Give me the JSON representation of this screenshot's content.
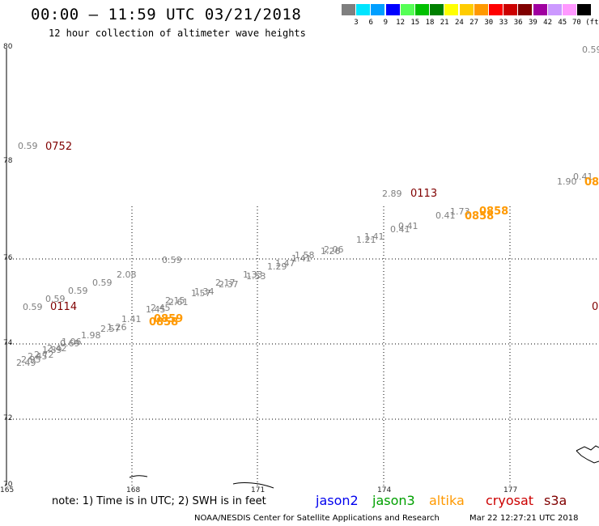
{
  "header": {
    "title": "00:00 – 11:59 UTC 03/21/2018",
    "subtitle": "12 hour collection of altimeter wave heights"
  },
  "color_scale": {
    "labels": [
      "3",
      "6",
      "9",
      "12",
      "15",
      "18",
      "21",
      "24",
      "27",
      "30",
      "33",
      "36",
      "39",
      "42",
      "45",
      "70 (ft)"
    ],
    "colors": [
      "#7f7f7f",
      "#00e5ff",
      "#009fff",
      "#0000ff",
      "#55ff55",
      "#00c000",
      "#008000",
      "#ffff00",
      "#ffcc00",
      "#ff9900",
      "#ff0000",
      "#cc0000",
      "#800000",
      "#a000a0",
      "#cc99ff",
      "#ff99ff",
      "#000000"
    ]
  },
  "axes": {
    "lat_ticks": [
      "80",
      "78",
      "76",
      "74",
      "72",
      "70"
    ],
    "lon_ticks": [
      "165",
      "168",
      "171",
      "174",
      "177"
    ]
  },
  "time_labels": [
    {
      "text": "0752",
      "sat": "cryosat"
    },
    {
      "text": "0113",
      "sat": "cryosat"
    },
    {
      "text": "0114",
      "sat": "cryosat"
    },
    {
      "text": "0858",
      "sat": "altika"
    },
    {
      "text": "0858",
      "sat": "altika"
    },
    {
      "text": "0859",
      "sat": "altika"
    },
    {
      "text": "0858",
      "sat": "altika"
    },
    {
      "text": "08",
      "sat": "altika"
    },
    {
      "text": "0",
      "sat": "cryosat"
    }
  ],
  "swh_values": [
    "0.59",
    "0.59",
    "2.89",
    "0.59",
    "0.59",
    "2.08",
    "0.59",
    "0.59",
    "0.59",
    "0.41",
    "0.41",
    "0.41",
    "1.73",
    "1.90",
    "0.41",
    "1.21",
    "1.41",
    "2.06",
    "1.26",
    "1.41",
    "1.58",
    "1.29",
    "1.47",
    "1.53",
    "1.33",
    "2.37",
    "2.17",
    "1.57",
    "1.34",
    "2.61",
    "2.15",
    "1.45",
    "2.45",
    "1.41",
    "1.26",
    "2.57",
    "1.98",
    "1.06",
    "0.69",
    "1.89",
    "2.42",
    "2.72",
    "2.95",
    "2.49",
    "2.45"
  ],
  "legend": {
    "note": "note: 1) Time is in UTC; 2) SWH is in feet",
    "sats": [
      {
        "name": "jason2",
        "color": "#0000ee"
      },
      {
        "name": "jason3",
        "color": "#00a000"
      },
      {
        "name": "altika",
        "color": "#ff9900"
      },
      {
        "name": "cryosat",
        "color": "#cc0000"
      },
      {
        "name": "s3a",
        "color": "#800000"
      }
    ]
  },
  "footer": {
    "credit": "NOAA/NESDIS Center for Satellite Applications and Research",
    "timestamp": "Mar 22 12:27:21 UTC 2018"
  }
}
